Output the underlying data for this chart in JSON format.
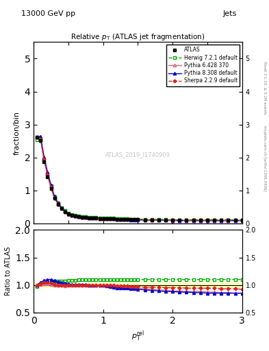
{
  "title": "Relative $p_{\\mathrm{T}}$ (ATLAS jet fragmentation)",
  "header_left": "13000 GeV pp",
  "header_right": "Jets",
  "watermark": "ATLAS_2019_I1740909",
  "right_label": "Rivet 3.1.10, ≥ 3.1M events",
  "right_label2": "mcplots.cern.ch [arXiv:1306.3436]",
  "xlabel": "$p_{\\mathrm{T}}^{\\mathrm{rel}}$",
  "ylabel_main": "fraction/bin",
  "ylabel_ratio": "Ratio to ATLAS",
  "xlim": [
    0,
    3
  ],
  "ylim_main": [
    0,
    5.5
  ],
  "ylim_ratio": [
    0.5,
    2.0
  ],
  "x_data": [
    0.05,
    0.1,
    0.15,
    0.2,
    0.25,
    0.3,
    0.35,
    0.4,
    0.45,
    0.5,
    0.55,
    0.6,
    0.65,
    0.7,
    0.75,
    0.8,
    0.85,
    0.9,
    0.95,
    1.0,
    1.05,
    1.1,
    1.15,
    1.2,
    1.25,
    1.3,
    1.35,
    1.4,
    1.45,
    1.5,
    1.6,
    1.7,
    1.8,
    1.9,
    2.0,
    2.1,
    2.2,
    2.3,
    2.4,
    2.5,
    2.6,
    2.7,
    2.8,
    2.9,
    3.0
  ],
  "atlas_y": [
    2.62,
    2.51,
    1.87,
    1.42,
    1.06,
    0.76,
    0.59,
    0.45,
    0.36,
    0.28,
    0.25,
    0.23,
    0.2,
    0.19,
    0.18,
    0.17,
    0.16,
    0.16,
    0.15,
    0.15,
    0.15,
    0.14,
    0.14,
    0.13,
    0.13,
    0.13,
    0.13,
    0.12,
    0.12,
    0.12,
    0.11,
    0.11,
    0.11,
    0.11,
    0.1,
    0.1,
    0.1,
    0.1,
    0.1,
    0.1,
    0.1,
    0.1,
    0.1,
    0.1,
    0.1
  ],
  "herwig_ratio": [
    0.97,
    1.02,
    1.03,
    1.05,
    1.07,
    1.07,
    1.07,
    1.07,
    1.07,
    1.08,
    1.08,
    1.08,
    1.09,
    1.09,
    1.09,
    1.1,
    1.1,
    1.1,
    1.1,
    1.1,
    1.1,
    1.1,
    1.1,
    1.1,
    1.1,
    1.1,
    1.1,
    1.1,
    1.1,
    1.1,
    1.1,
    1.1,
    1.1,
    1.1,
    1.1,
    1.1,
    1.1,
    1.1,
    1.1,
    1.1,
    1.1,
    1.1,
    1.1,
    1.1,
    1.1
  ],
  "pythia6_ratio": [
    1.0,
    1.01,
    1.02,
    1.02,
    1.01,
    1.0,
    1.0,
    0.99,
    0.98,
    0.99,
    0.99,
    0.99,
    1.0,
    1.0,
    1.0,
    1.0,
    1.0,
    1.0,
    0.99,
    0.99,
    0.99,
    0.99,
    0.98,
    0.97,
    0.96,
    0.96,
    0.96,
    0.95,
    0.94,
    0.94,
    0.93,
    0.92,
    0.91,
    0.9,
    0.89,
    0.89,
    0.88,
    0.88,
    0.88,
    0.87,
    0.87,
    0.86,
    0.86,
    0.85,
    0.85
  ],
  "pythia8_ratio": [
    1.0,
    1.05,
    1.08,
    1.1,
    1.1,
    1.08,
    1.06,
    1.04,
    1.03,
    1.02,
    1.01,
    1.01,
    1.01,
    1.01,
    1.01,
    1.0,
    1.0,
    0.99,
    0.99,
    0.99,
    0.98,
    0.97,
    0.96,
    0.95,
    0.95,
    0.94,
    0.94,
    0.93,
    0.93,
    0.92,
    0.91,
    0.9,
    0.89,
    0.88,
    0.88,
    0.87,
    0.87,
    0.86,
    0.86,
    0.85,
    0.85,
    0.85,
    0.85,
    0.85,
    0.85
  ],
  "sherpa_ratio": [
    1.0,
    1.02,
    1.04,
    1.04,
    1.03,
    1.01,
    1.0,
    1.0,
    1.0,
    1.0,
    1.0,
    1.0,
    1.0,
    1.0,
    1.0,
    1.0,
    1.0,
    1.0,
    1.0,
    1.0,
    1.0,
    0.99,
    0.99,
    0.98,
    0.98,
    0.98,
    0.98,
    0.97,
    0.97,
    0.97,
    0.96,
    0.96,
    0.96,
    0.95,
    0.95,
    0.95,
    0.94,
    0.94,
    0.94,
    0.94,
    0.94,
    0.93,
    0.93,
    0.93,
    0.92
  ],
  "atlas_color": "#000000",
  "herwig_color": "#00aa00",
  "pythia6_color": "#cc0000",
  "pythia8_color": "#0000cc",
  "sherpa_color": "#cc0000",
  "atlas_band_color": "#ffff99",
  "legend_labels": [
    "ATLAS",
    "Herwig 7.2.1 default",
    "Pythia 6.428 370",
    "Pythia 8.308 default",
    "Sherpa 2.2.9 default"
  ]
}
